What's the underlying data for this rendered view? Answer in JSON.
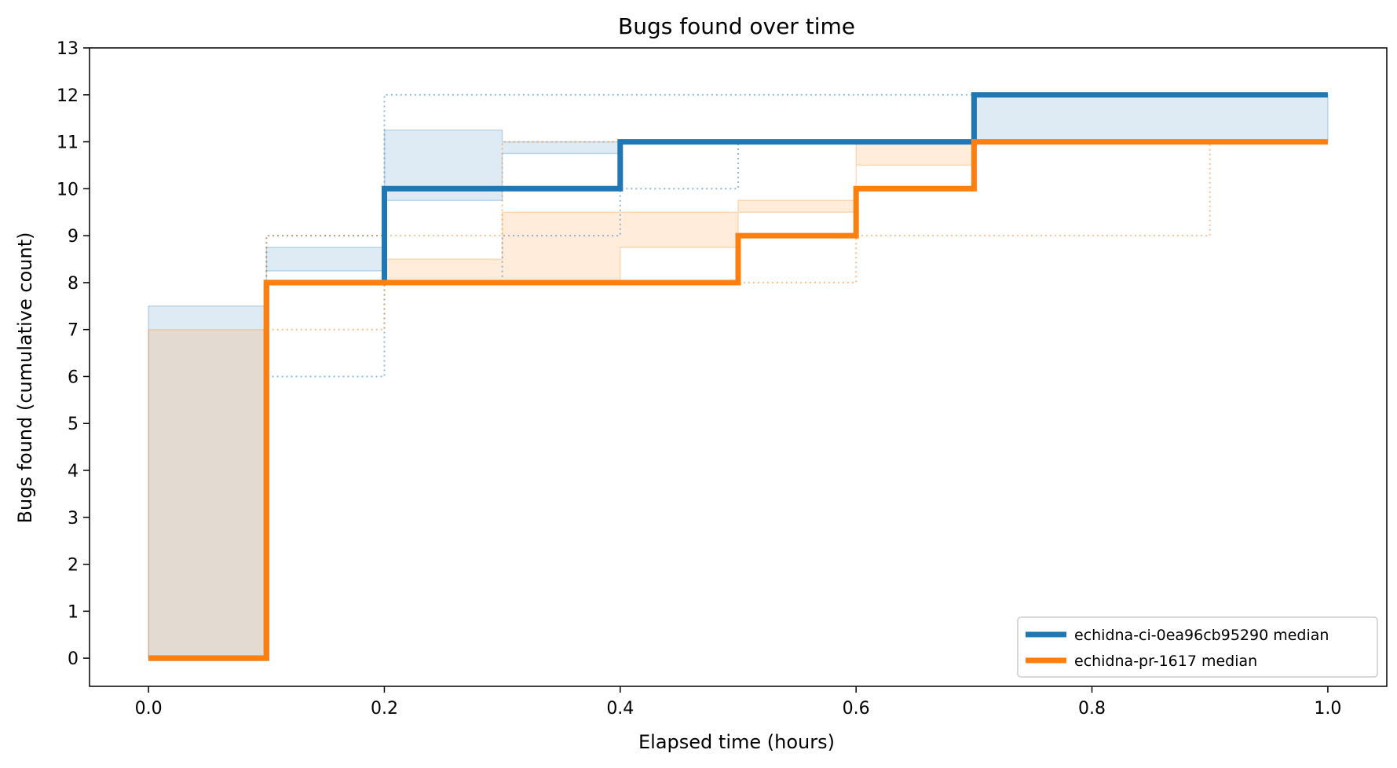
{
  "chart_data": {
    "type": "line",
    "step": "post",
    "title": "Bugs found over time",
    "xlabel": "Elapsed time (hours)",
    "ylabel": "Bugs found (cumulative count)",
    "xlim": [
      -0.05,
      1.05
    ],
    "ylim": [
      -0.6,
      13
    ],
    "xticks": [
      "0.0",
      "0.2",
      "0.4",
      "0.6",
      "0.8",
      "1.0"
    ],
    "yticks": [
      "0",
      "1",
      "2",
      "3",
      "4",
      "5",
      "6",
      "7",
      "8",
      "9",
      "10",
      "11",
      "12",
      "13"
    ],
    "grid": false,
    "legend_position": "lower-right",
    "series": [
      {
        "name": "echidna-ci-0ea96cb95290 median",
        "color": "#1f77b4",
        "x": [
          0.0,
          0.1,
          0.2,
          0.3,
          0.4,
          0.5,
          0.6,
          0.7,
          1.0
        ],
        "median": [
          0,
          8,
          10,
          10,
          11,
          11,
          11,
          12,
          12
        ],
        "q1": [
          0,
          7.5,
          8.75,
          9.75,
          10.75,
          11,
          11,
          11,
          11
        ],
        "q3": [
          0,
          8.25,
          11.25,
          11,
          11,
          11,
          11,
          12,
          12
        ],
        "min": [
          0,
          6,
          8,
          9,
          10,
          11,
          11,
          11,
          11
        ],
        "max": [
          0,
          9,
          12,
          12,
          12,
          12,
          12,
          12,
          12
        ]
      },
      {
        "name": "echidna-pr-1617 median",
        "color": "#ff7f0e",
        "x": [
          0.0,
          0.1,
          0.2,
          0.3,
          0.4,
          0.5,
          0.6,
          0.7,
          0.9,
          1.0
        ],
        "median": [
          0,
          8,
          8,
          8,
          8,
          9,
          10,
          11,
          11,
          11
        ],
        "q1": [
          0,
          7,
          8,
          8,
          8,
          8.75,
          9.75,
          10.5,
          11,
          11
        ],
        "q3": [
          0,
          8,
          8.5,
          9.5,
          9.5,
          9.5,
          11,
          11,
          11,
          11
        ],
        "min": [
          0,
          7,
          8,
          8,
          8,
          8,
          9,
          9,
          11,
          11
        ],
        "max": [
          0,
          9,
          9,
          11,
          11,
          11,
          11,
          11,
          11,
          11
        ]
      }
    ]
  }
}
